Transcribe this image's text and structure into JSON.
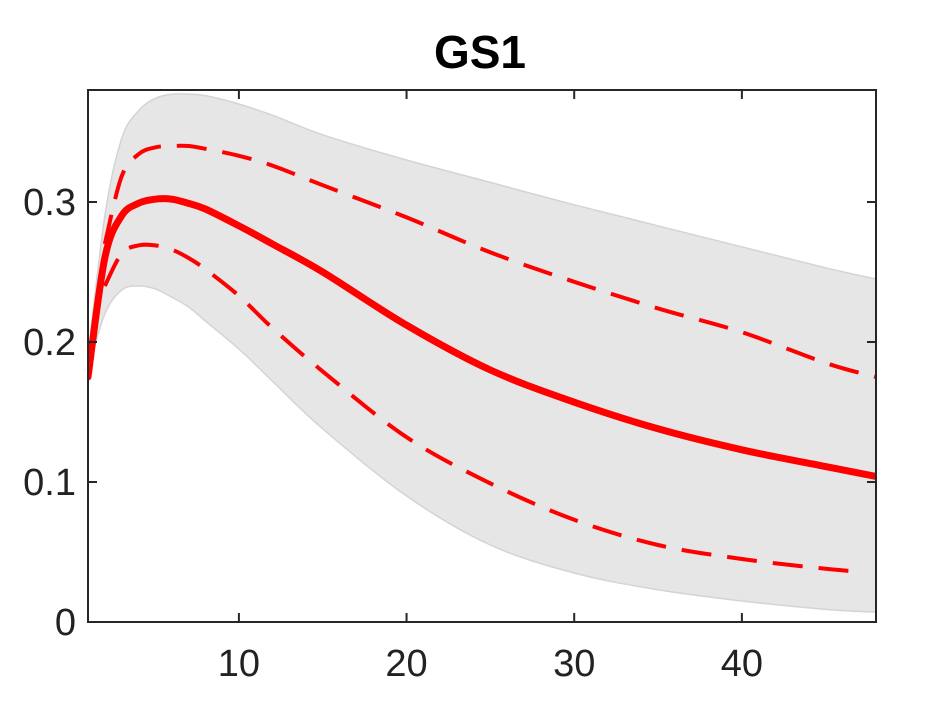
{
  "chart_data": {
    "type": "line",
    "title": "GS1",
    "xlabel": "",
    "ylabel": "",
    "xlim": [
      1,
      48
    ],
    "ylim": [
      0,
      0.38
    ],
    "xticks": [
      10,
      20,
      30,
      40
    ],
    "yticks": [
      0,
      0.1,
      0.2,
      0.3
    ],
    "xtick_labels": [
      "10",
      "20",
      "30",
      "40"
    ],
    "ytick_labels": [
      "0",
      "0.1",
      "0.2",
      "0.3"
    ],
    "grid": false,
    "legend": "none",
    "colors": {
      "line": "#ff0000",
      "band": "#e6e6e6",
      "band_edge": "#d4d4d4",
      "axis": "#262626"
    },
    "band": {
      "x": [
        1,
        2,
        3,
        4,
        5,
        6,
        7,
        8,
        10,
        12,
        15,
        20,
        25,
        30,
        35,
        40,
        45,
        48
      ],
      "lower": [
        0.18,
        0.22,
        0.237,
        0.24,
        0.238,
        0.232,
        0.225,
        0.215,
        0.195,
        0.172,
        0.138,
        0.09,
        0.055,
        0.035,
        0.023,
        0.015,
        0.009,
        0.007
      ],
      "upper": [
        0.19,
        0.29,
        0.345,
        0.365,
        0.374,
        0.377,
        0.377,
        0.376,
        0.37,
        0.362,
        0.348,
        0.33,
        0.314,
        0.298,
        0.283,
        0.268,
        0.253,
        0.245
      ]
    },
    "series": [
      {
        "style": "solid",
        "x": [
          1,
          2,
          3,
          4,
          5,
          6,
          7,
          8,
          10,
          12,
          15,
          20,
          25,
          30,
          35,
          40,
          45,
          48
        ],
        "values": [
          0.175,
          0.26,
          0.29,
          0.299,
          0.302,
          0.302,
          0.299,
          0.295,
          0.283,
          0.27,
          0.25,
          0.212,
          0.18,
          0.157,
          0.138,
          0.123,
          0.111,
          0.104
        ]
      },
      {
        "style": "dashed",
        "x": [
          2,
          3,
          4,
          5,
          6,
          7,
          8,
          10,
          12,
          15,
          20,
          25,
          30,
          35,
          40,
          45,
          48
        ],
        "values": [
          0.27,
          0.318,
          0.334,
          0.339,
          0.34,
          0.34,
          0.338,
          0.333,
          0.326,
          0.312,
          0.289,
          0.264,
          0.243,
          0.224,
          0.207,
          0.185,
          0.175
        ]
      },
      {
        "style": "dashed",
        "x": [
          2,
          3,
          4,
          5,
          6,
          7,
          8,
          10,
          12,
          15,
          20,
          25,
          30,
          35,
          40,
          45,
          47
        ],
        "values": [
          0.24,
          0.263,
          0.269,
          0.269,
          0.266,
          0.26,
          0.252,
          0.233,
          0.21,
          0.179,
          0.132,
          0.099,
          0.073,
          0.055,
          0.045,
          0.038,
          0.036
        ]
      }
    ]
  }
}
